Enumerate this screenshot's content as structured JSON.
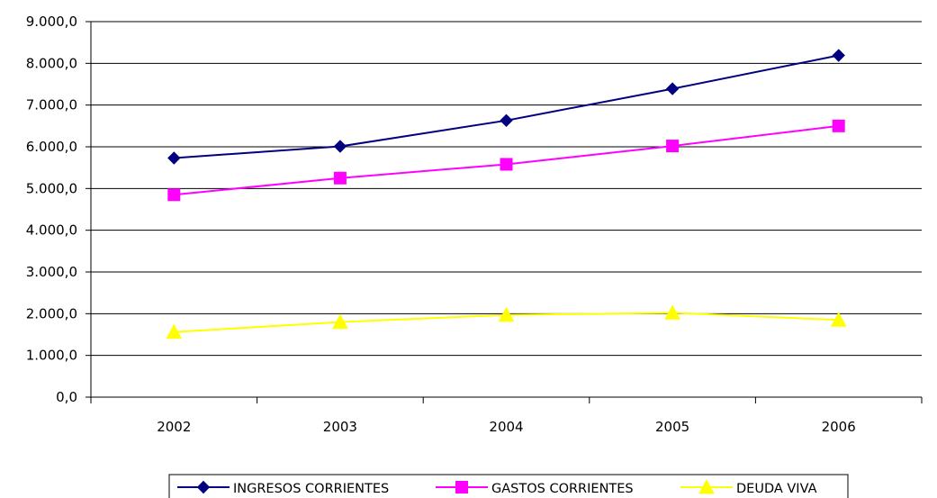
{
  "chart_data": {
    "type": "line",
    "categories": [
      "2002",
      "2003",
      "2004",
      "2005",
      "2006"
    ],
    "series": [
      {
        "name": "INGRESOS CORRIENTES",
        "values": [
          5730,
          6010,
          6630,
          7390,
          8190
        ],
        "color": "#000080",
        "marker": "diamond"
      },
      {
        "name": "GASTOS CORRIENTES",
        "values": [
          4850,
          5250,
          5580,
          6020,
          6500
        ],
        "color": "#FF00FF",
        "marker": "square"
      },
      {
        "name": "DEUDA VIVA",
        "values": [
          1560,
          1800,
          1970,
          2020,
          1850
        ],
        "color": "#FFFF00",
        "marker": "triangle"
      }
    ],
    "ylim": [
      0,
      9000
    ],
    "yticks": [
      "0,0",
      "1.000,0",
      "2.000,0",
      "3.000,0",
      "4.000,0",
      "5.000,0",
      "6.000,0",
      "7.000,0",
      "8.000,0",
      "9.000,0"
    ],
    "grid": true,
    "legend_position": "bottom"
  }
}
